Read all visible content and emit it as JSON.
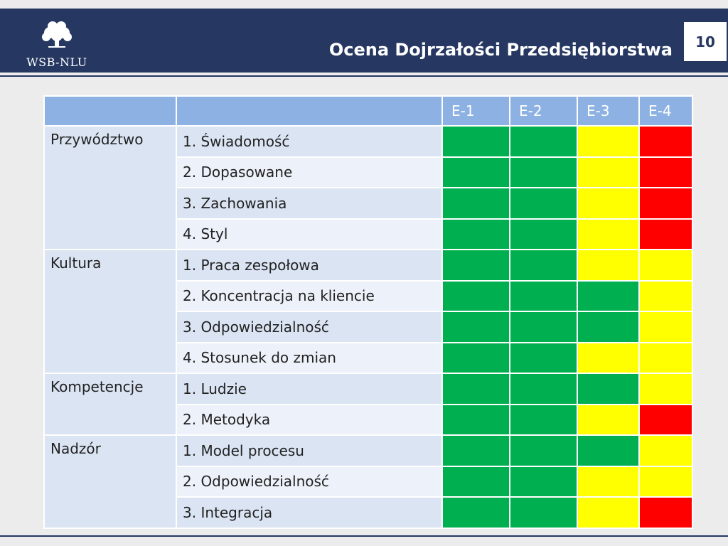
{
  "header": {
    "title": "Ocena Dojrzałości Przedsiębiorstwa",
    "page_number": "10",
    "logo_text": "WSB-NLU"
  },
  "colors": {
    "header_bg": "#263862",
    "green": "#00b050",
    "yellow": "#ffff00",
    "red": "#ff0000",
    "table_header_bg": "#8db1e2"
  },
  "table": {
    "columns": [
      "",
      "",
      "E-1",
      "E-2",
      "E-3",
      "E-4"
    ],
    "groups": [
      {
        "area": "Przywództwo",
        "rows": [
          {
            "criterion": "1. Świadomość",
            "ratings": [
              "green",
              "green",
              "yellow",
              "red"
            ]
          },
          {
            "criterion": "2. Dopasowane",
            "ratings": [
              "green",
              "green",
              "yellow",
              "red"
            ]
          },
          {
            "criterion": "3. Zachowania",
            "ratings": [
              "green",
              "green",
              "yellow",
              "red"
            ]
          },
          {
            "criterion": "4. Styl",
            "ratings": [
              "green",
              "green",
              "yellow",
              "red"
            ]
          }
        ]
      },
      {
        "area": "Kultura",
        "rows": [
          {
            "criterion": "1. Praca zespołowa",
            "ratings": [
              "green",
              "green",
              "yellow",
              "yellow"
            ]
          },
          {
            "criterion": "2. Koncentracja na kliencie",
            "ratings": [
              "green",
              "green",
              "green",
              "yellow"
            ]
          },
          {
            "criterion": "3. Odpowiedzialność",
            "ratings": [
              "green",
              "green",
              "green",
              "yellow"
            ]
          },
          {
            "criterion": "4. Stosunek do zmian",
            "ratings": [
              "green",
              "green",
              "yellow",
              "yellow"
            ]
          }
        ]
      },
      {
        "area": "Kompetencje",
        "rows": [
          {
            "criterion": "1. Ludzie",
            "ratings": [
              "green",
              "green",
              "green",
              "yellow"
            ]
          },
          {
            "criterion": "2. Metodyka",
            "ratings": [
              "green",
              "green",
              "yellow",
              "red"
            ]
          }
        ]
      },
      {
        "area": "Nadzór",
        "rows": [
          {
            "criterion": "1. Model procesu",
            "ratings": [
              "green",
              "green",
              "green",
              "yellow"
            ]
          },
          {
            "criterion": "2. Odpowiedzialność",
            "ratings": [
              "green",
              "green",
              "yellow",
              "yellow"
            ]
          },
          {
            "criterion": "3. Integracja",
            "ratings": [
              "green",
              "green",
              "yellow",
              "red"
            ]
          }
        ]
      }
    ]
  }
}
